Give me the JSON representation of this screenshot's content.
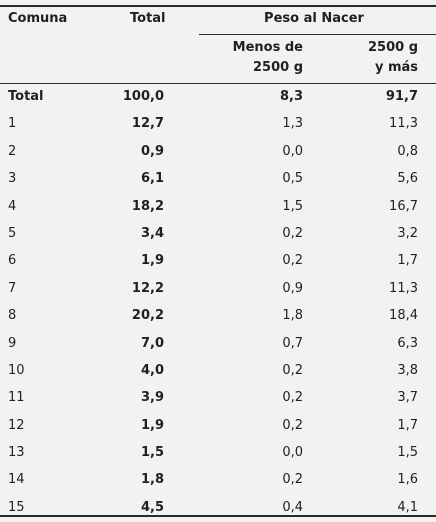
{
  "headers": {
    "comuna": "Comuna",
    "total": "Total",
    "peso": "Peso al Nacer",
    "menos_line1": "Menos de",
    "menos_line2": "2500 g",
    "mas_line1": "2500 g",
    "mas_line2": "y más"
  },
  "rows": [
    {
      "comuna": "Total",
      "total": "100,0",
      "menos": "8,3",
      "mas": "91,7"
    },
    {
      "comuna": "1",
      "total": "12,7",
      "menos": "1,3",
      "mas": "11,3"
    },
    {
      "comuna": "2",
      "total": "0,9",
      "menos": "0,0",
      "mas": "0,8"
    },
    {
      "comuna": "3",
      "total": "6,1",
      "menos": "0,5",
      "mas": "5,6"
    },
    {
      "comuna": "4",
      "total": "18,2",
      "menos": "1,5",
      "mas": "16,7"
    },
    {
      "comuna": "5",
      "total": "3,4",
      "menos": "0,2",
      "mas": "3,2"
    },
    {
      "comuna": "6",
      "total": "1,9",
      "menos": "0,2",
      "mas": "1,7"
    },
    {
      "comuna": "7",
      "total": "12,2",
      "menos": "0,9",
      "mas": "11,3"
    },
    {
      "comuna": "8",
      "total": "20,2",
      "menos": "1,8",
      "mas": "18,4"
    },
    {
      "comuna": "9",
      "total": "7,0",
      "menos": "0,7",
      "mas": "6,3"
    },
    {
      "comuna": "10",
      "total": "4,0",
      "menos": "0,2",
      "mas": "3,8"
    },
    {
      "comuna": "11",
      "total": "3,9",
      "menos": "0,2",
      "mas": "3,7"
    },
    {
      "comuna": "12",
      "total": "1,9",
      "menos": "0,2",
      "mas": "1,7"
    },
    {
      "comuna": "13",
      "total": "1,5",
      "menos": "0,0",
      "mas": "1,5"
    },
    {
      "comuna": "14",
      "total": "1,8",
      "menos": "0,2",
      "mas": "1,6"
    },
    {
      "comuna": "15",
      "total": "4,5",
      "menos": "0,4",
      "mas": "4,1"
    }
  ]
}
